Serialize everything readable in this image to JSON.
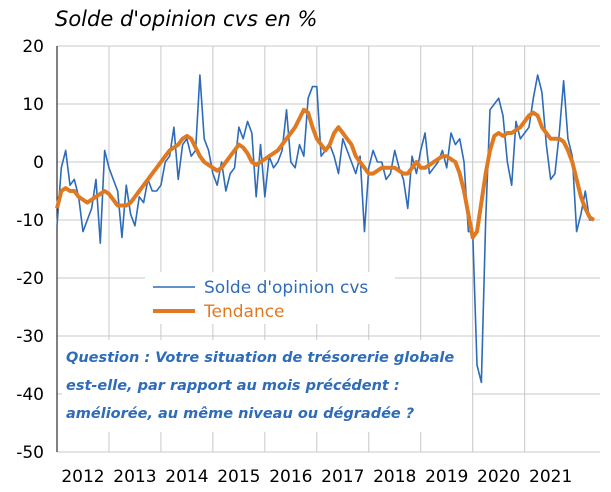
{
  "chart_data": {
    "type": "line",
    "title": "Solde d'opinion cvs en %",
    "annotation": [
      "Question : Votre situation de trésorerie globale",
      "est-elle, par rapport au mois précédent :",
      "améliorée, au même niveau ou dégradée ?"
    ],
    "x": [
      2012.0,
      2012.083,
      2012.167,
      2012.25,
      2012.333,
      2012.417,
      2012.5,
      2012.583,
      2012.667,
      2012.75,
      2012.833,
      2012.917,
      2013.0,
      2013.083,
      2013.167,
      2013.25,
      2013.333,
      2013.417,
      2013.5,
      2013.583,
      2013.667,
      2013.75,
      2013.833,
      2013.917,
      2014.0,
      2014.083,
      2014.167,
      2014.25,
      2014.333,
      2014.417,
      2014.5,
      2014.583,
      2014.667,
      2014.75,
      2014.833,
      2014.917,
      2015.0,
      2015.083,
      2015.167,
      2015.25,
      2015.333,
      2015.417,
      2015.5,
      2015.583,
      2015.667,
      2015.75,
      2015.833,
      2015.917,
      2016.0,
      2016.083,
      2016.167,
      2016.25,
      2016.333,
      2016.417,
      2016.5,
      2016.583,
      2016.667,
      2016.75,
      2016.833,
      2016.917,
      2017.0,
      2017.083,
      2017.167,
      2017.25,
      2017.333,
      2017.417,
      2017.5,
      2017.583,
      2017.667,
      2017.75,
      2017.833,
      2017.917,
      2018.0,
      2018.083,
      2018.167,
      2018.25,
      2018.333,
      2018.417,
      2018.5,
      2018.583,
      2018.667,
      2018.75,
      2018.833,
      2018.917,
      2019.0,
      2019.083,
      2019.167,
      2019.25,
      2019.333,
      2019.417,
      2019.5,
      2019.583,
      2019.667,
      2019.75,
      2019.833,
      2019.917,
      2020.0,
      2020.083,
      2020.167,
      2020.25,
      2020.333,
      2020.417,
      2020.5,
      2020.583,
      2020.667,
      2020.75,
      2020.833,
      2020.917,
      2021.0,
      2021.083,
      2021.167,
      2021.25,
      2021.333,
      2021.417,
      2021.5,
      2021.583,
      2021.667,
      2021.75,
      2021.833,
      2021.917,
      2022.0,
      2022.083,
      2022.167,
      2022.25,
      2022.333
    ],
    "series": [
      {
        "name": "Solde d'opinion cvs",
        "color": "#2e6bb8",
        "width": 1.6,
        "values": [
          -11,
          -1,
          2,
          -4,
          -3,
          -6,
          -12,
          -10,
          -8,
          -3,
          -14,
          2,
          -1,
          -3,
          -5,
          -13,
          -4,
          -9,
          -11,
          -6,
          -7,
          -3,
          -5,
          -5,
          -4,
          0,
          1,
          6,
          -3,
          3,
          4,
          1,
          2,
          15,
          4,
          2,
          -2,
          -4,
          0,
          -5,
          -2,
          -1,
          6,
          4,
          7,
          5,
          -6,
          3,
          -6,
          1,
          -1,
          0,
          2,
          9,
          0,
          -1,
          3,
          1,
          11,
          13,
          13,
          1,
          2,
          3,
          1,
          -2,
          4,
          2,
          0,
          -2,
          1,
          -12,
          -1,
          2,
          0,
          0,
          -3,
          -2,
          2,
          -1,
          -3,
          -8,
          1,
          -2,
          2,
          5,
          -2,
          -1,
          0,
          2,
          -1,
          5,
          3,
          4,
          0,
          -12,
          -12,
          -35,
          -38,
          -10,
          9,
          10,
          11,
          8,
          0,
          -4,
          7,
          4,
          5,
          6,
          11,
          15,
          12,
          3,
          -3,
          -2,
          5,
          14,
          4,
          1,
          -12,
          -9,
          -5,
          -10,
          -10
        ]
      },
      {
        "name": "Tendance",
        "color": "#e07a22",
        "width": 4,
        "values": [
          -8,
          -5,
          -4.5,
          -5,
          -5,
          -6,
          -6.5,
          -7,
          -6.5,
          -6,
          -5.5,
          -5,
          -5.5,
          -6.5,
          -7.5,
          -7.5,
          -7.5,
          -7,
          -6,
          -5,
          -4,
          -3,
          -2,
          -1,
          0,
          1,
          2,
          2.5,
          3,
          4,
          4.5,
          4,
          2.5,
          1,
          0,
          -0.5,
          -1,
          -1.5,
          -1,
          0,
          1,
          2,
          3,
          2.5,
          1.5,
          0,
          -0.5,
          0,
          0.5,
          1,
          1.5,
          2,
          3,
          4,
          5,
          6,
          7.5,
          9,
          8.5,
          6,
          4,
          3,
          2,
          3,
          5,
          6,
          5,
          4,
          3,
          1,
          0,
          -1,
          -2,
          -2,
          -1.5,
          -1,
          -1,
          -1,
          -1,
          -1.5,
          -2,
          -2,
          -1,
          0,
          -1,
          -1,
          -0.5,
          0,
          0.5,
          1,
          1,
          0.5,
          0,
          -2,
          -5,
          -9,
          -13,
          -12,
          -7,
          -2,
          2,
          4.5,
          5,
          4.5,
          5,
          5,
          5.5,
          6,
          7,
          8,
          8.5,
          8,
          6,
          5,
          4,
          4,
          4,
          3.5,
          2,
          0,
          -3,
          -6,
          -8,
          -9.5,
          -10
        ]
      }
    ],
    "xlim": [
      2012,
      2022.45
    ],
    "xticks": [
      2012,
      2013,
      2014,
      2015,
      2016,
      2017,
      2018,
      2019,
      2020,
      2021
    ],
    "ylim": [
      -50,
      20
    ],
    "yticks": [
      -50,
      -40,
      -30,
      -20,
      -10,
      0,
      10,
      20
    ],
    "grid": true
  }
}
